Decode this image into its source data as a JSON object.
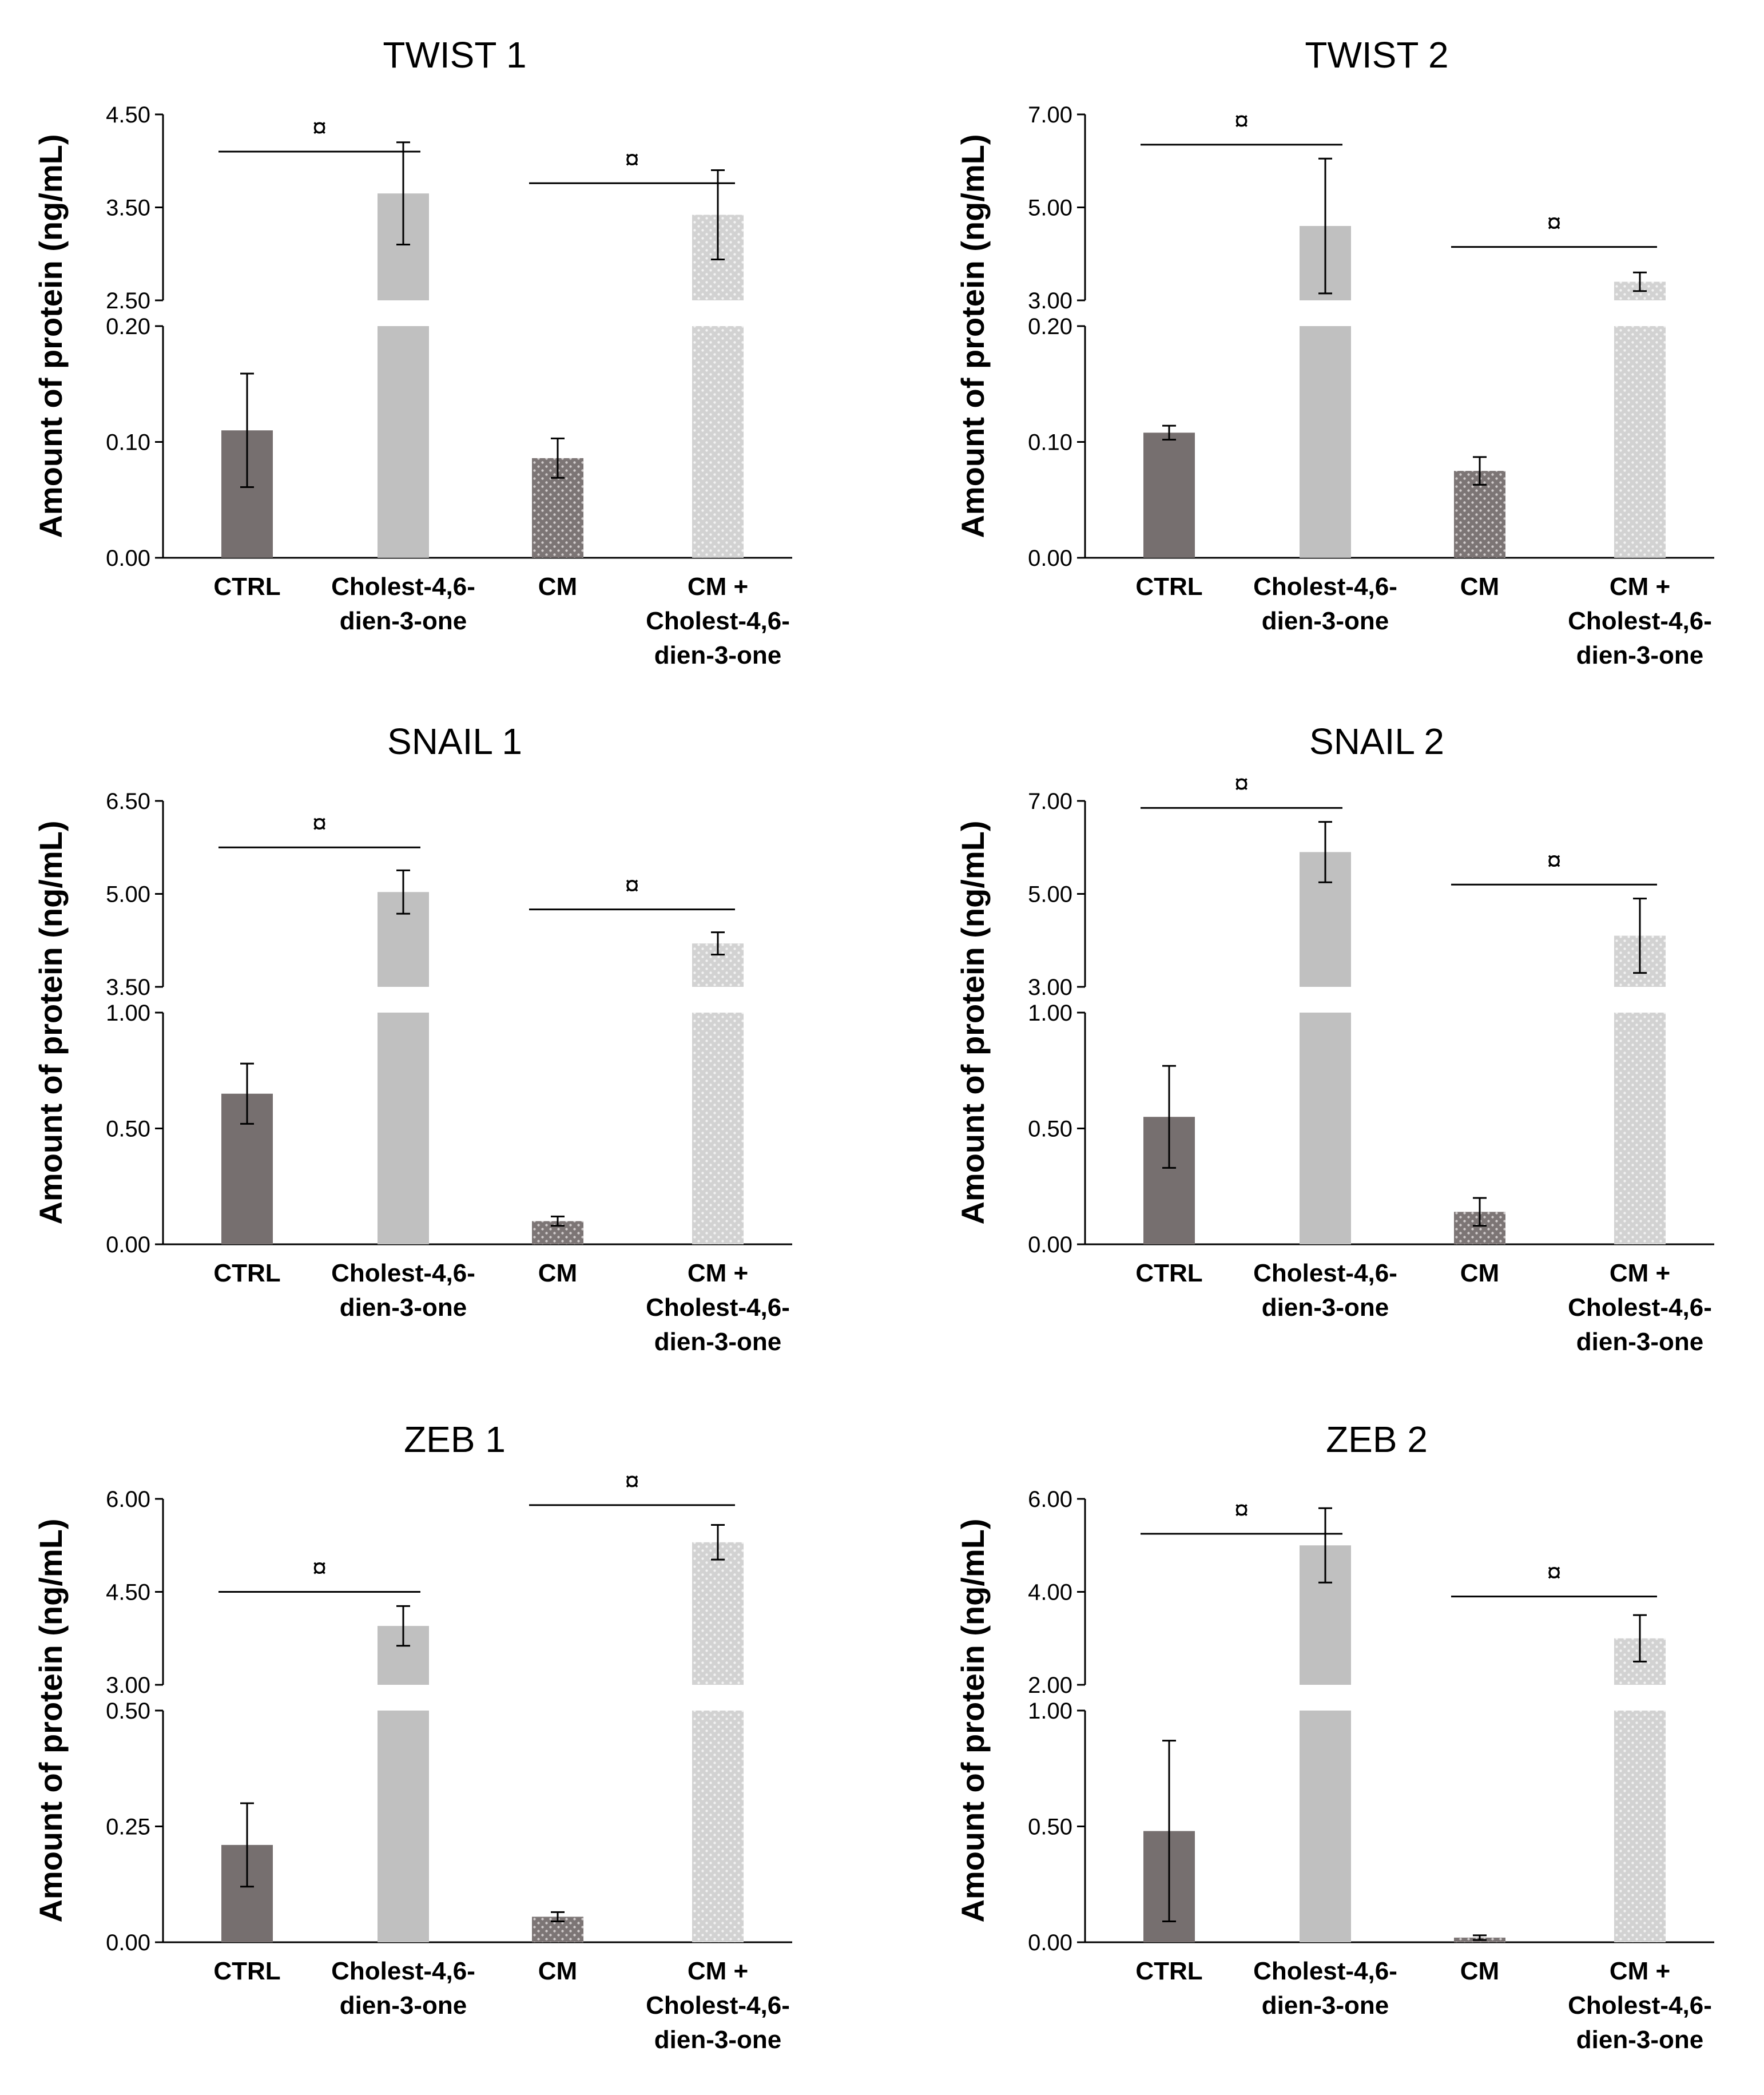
{
  "figure": {
    "ylabel": "Amount of protein (ng/mL)"
  },
  "colors": {
    "ctrl": "#766f6f",
    "chol": "#c0c0c0",
    "cm": "#7c7575",
    "cmchol": "#d2d2d2",
    "axis": "#000000"
  },
  "chart_data": [
    {
      "type": "bar",
      "title": "TWIST 1",
      "ylabel": "Amount of protein (ng/mL)",
      "categories": [
        [
          "CTRL"
        ],
        [
          "Cholest-4,6-",
          "dien-3-one"
        ],
        [
          "CM"
        ],
        [
          "CM +",
          "Cholest-4,6-",
          "dien-3-one"
        ]
      ],
      "values": [
        0.11,
        3.65,
        0.086,
        3.42
      ],
      "errors": [
        0.049,
        0.55,
        0.017,
        0.48
      ],
      "ylim_lower": [
        0,
        0.2
      ],
      "ylim_upper": [
        2.5,
        4.5
      ],
      "ticks_lower": [
        "0.00",
        "0.10",
        "0.20"
      ],
      "ticks_upper": [
        "2.50",
        "3.50",
        "4.50"
      ],
      "significance": [
        {
          "from": 0,
          "to": 1,
          "level": 4.1,
          "symbol": "¤"
        },
        {
          "from": 2,
          "to": 3,
          "level": 3.76,
          "symbol": "¤"
        }
      ]
    },
    {
      "type": "bar",
      "title": "TWIST 2",
      "ylabel": "Amount of protein (ng/mL)",
      "categories": [
        [
          "CTRL"
        ],
        [
          "Cholest-4,6-",
          "dien-3-one"
        ],
        [
          "CM"
        ],
        [
          "CM +",
          "Cholest-4,6-",
          "dien-3-one"
        ]
      ],
      "values": [
        0.108,
        4.6,
        0.075,
        3.4
      ],
      "errors": [
        0.006,
        1.45,
        0.012,
        0.2
      ],
      "ylim_lower": [
        0,
        0.2
      ],
      "ylim_upper": [
        3,
        7
      ],
      "ticks_lower": [
        "0.00",
        "0.10",
        "0.20"
      ],
      "ticks_upper": [
        "3.00",
        "5.00",
        "7.00"
      ],
      "significance": [
        {
          "from": 0,
          "to": 1,
          "level": 6.35,
          "symbol": "¤"
        },
        {
          "from": 2,
          "to": 3,
          "level": 4.15,
          "symbol": "¤"
        }
      ]
    },
    {
      "type": "bar",
      "title": "SNAIL 1",
      "ylabel": "Amount of protein (ng/mL)",
      "categories": [
        [
          "CTRL"
        ],
        [
          "Cholest-4,6-",
          "dien-3-one"
        ],
        [
          "CM"
        ],
        [
          "CM +",
          "Cholest-4,6-",
          "dien-3-one"
        ]
      ],
      "values": [
        0.65,
        5.03,
        0.1,
        4.2
      ],
      "errors": [
        0.13,
        0.35,
        0.02,
        0.18
      ],
      "ylim_lower": [
        0,
        1
      ],
      "ylim_upper": [
        3.5,
        6.5
      ],
      "ticks_lower": [
        "0.00",
        "0.50",
        "1.00"
      ],
      "ticks_upper": [
        "3.50",
        "5.00",
        "6.50"
      ],
      "significance": [
        {
          "from": 0,
          "to": 1,
          "level": 5.75,
          "symbol": "¤"
        },
        {
          "from": 2,
          "to": 3,
          "level": 4.75,
          "symbol": "¤"
        }
      ]
    },
    {
      "type": "bar",
      "title": "SNAIL 2",
      "ylabel": "Amount of protein (ng/mL)",
      "categories": [
        [
          "CTRL"
        ],
        [
          "Cholest-4,6-",
          "dien-3-one"
        ],
        [
          "CM"
        ],
        [
          "CM +",
          "Cholest-4,6-",
          "dien-3-one"
        ]
      ],
      "values": [
        0.55,
        5.9,
        0.14,
        4.1
      ],
      "errors": [
        0.22,
        0.65,
        0.06,
        0.8
      ],
      "ylim_lower": [
        0,
        1
      ],
      "ylim_upper": [
        3,
        7
      ],
      "ticks_lower": [
        "0.00",
        "0.50",
        "1.00"
      ],
      "ticks_upper": [
        "3.00",
        "5.00",
        "7.00"
      ],
      "significance": [
        {
          "from": 0,
          "to": 1,
          "level": 6.85,
          "symbol": "¤"
        },
        {
          "from": 2,
          "to": 3,
          "level": 5.2,
          "symbol": "¤"
        }
      ]
    },
    {
      "type": "bar",
      "title": "ZEB 1",
      "ylabel": "Amount of protein (ng/mL)",
      "categories": [
        [
          "CTRL"
        ],
        [
          "Cholest-4,6-",
          "dien-3-one"
        ],
        [
          "CM"
        ],
        [
          "CM +",
          "Cholest-4,6-",
          "dien-3-one"
        ]
      ],
      "values": [
        0.21,
        3.95,
        0.055,
        5.3
      ],
      "errors": [
        0.09,
        0.32,
        0.01,
        0.28
      ],
      "ylim_lower": [
        0,
        0.5
      ],
      "ylim_upper": [
        3,
        6
      ],
      "ticks_lower": [
        "0.00",
        "0.25",
        "0.50"
      ],
      "ticks_upper": [
        "3.00",
        "4.50",
        "6.00"
      ],
      "significance": [
        {
          "from": 0,
          "to": 1,
          "level": 4.5,
          "symbol": "¤"
        },
        {
          "from": 2,
          "to": 3,
          "level": 5.9,
          "symbol": "¤"
        }
      ]
    },
    {
      "type": "bar",
      "title": "ZEB 2",
      "ylabel": "Amount of protein (ng/mL)",
      "categories": [
        [
          "CTRL"
        ],
        [
          "Cholest-4,6-",
          "dien-3-one"
        ],
        [
          "CM"
        ],
        [
          "CM +",
          "Cholest-4,6-",
          "dien-3-one"
        ]
      ],
      "values": [
        0.48,
        5.0,
        0.02,
        3.0
      ],
      "errors": [
        0.39,
        0.8,
        0.01,
        0.5
      ],
      "ylim_lower": [
        0,
        1
      ],
      "ylim_upper": [
        2,
        6
      ],
      "ticks_lower": [
        "0.00",
        "0.50",
        "1.00"
      ],
      "ticks_upper": [
        "2.00",
        "4.00",
        "6.00"
      ],
      "significance": [
        {
          "from": 0,
          "to": 1,
          "level": 5.25,
          "symbol": "¤"
        },
        {
          "from": 2,
          "to": 3,
          "level": 3.9,
          "symbol": "¤"
        }
      ]
    }
  ]
}
